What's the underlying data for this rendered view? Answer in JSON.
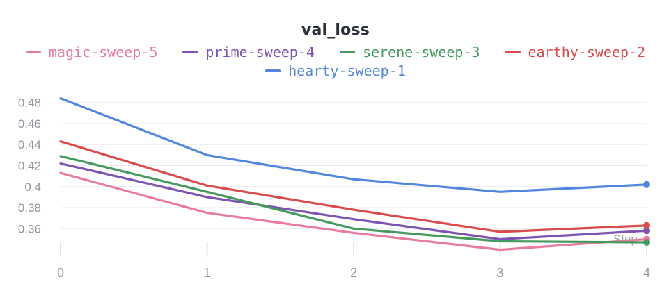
{
  "panel": {
    "title": "val_loss"
  },
  "chart_data": {
    "type": "line",
    "title": "val_loss",
    "xlabel": "Step",
    "ylabel": "",
    "x": [
      0,
      1,
      2,
      3,
      4
    ],
    "xlim": [
      0,
      4
    ],
    "ylim": [
      0.328,
      0.492
    ],
    "grid": "horizontal",
    "legend_position": "top",
    "x_tick_labels": [
      "0",
      "1",
      "2",
      "3",
      "4"
    ],
    "y_tick_labels": [
      "0.48",
      "0.46",
      "0.44",
      "0.42",
      "0.4",
      "0.38",
      "0.36"
    ],
    "series": [
      {
        "name": "magic-sweep-5",
        "color": "#e87b9f",
        "values": [
          0.413,
          0.375,
          0.356,
          0.34,
          0.35
        ]
      },
      {
        "name": "prime-sweep-4",
        "color": "#7d54b2",
        "values": [
          0.422,
          0.39,
          0.369,
          0.35,
          0.358
        ]
      },
      {
        "name": "serene-sweep-3",
        "color": "#479a5f",
        "values": [
          0.429,
          0.395,
          0.36,
          0.348,
          0.347
        ]
      },
      {
        "name": "earthy-sweep-2",
        "color": "#da4c4c",
        "values": [
          0.443,
          0.401,
          0.378,
          0.357,
          0.363
        ]
      },
      {
        "name": "hearty-sweep-1",
        "color": "#5387dd",
        "values": [
          0.484,
          0.43,
          0.407,
          0.395,
          0.402
        ]
      }
    ],
    "colors": {
      "background": "#ffffff",
      "grid": "#e8eaed",
      "tick_mark": "#e3e5e9",
      "tick_text": "#8f959f",
      "axis_title": "#9aa0a8",
      "title_text": "#2b3038"
    }
  }
}
